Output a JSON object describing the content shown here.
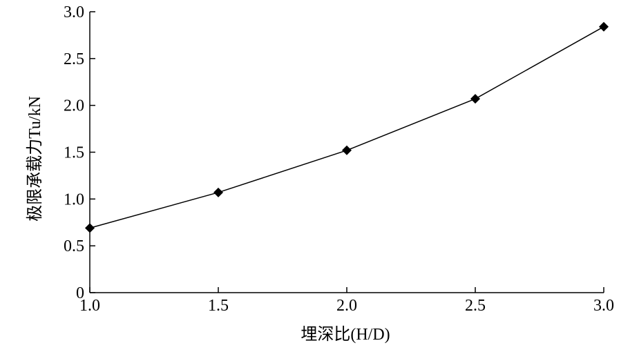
{
  "chart_data": {
    "type": "line",
    "x_label": "埋深比(H/D)",
    "y_label": "极限承载力Tu/kN",
    "x": [
      1.0,
      1.5,
      2.0,
      2.5,
      3.0
    ],
    "series": [
      {
        "name": "Tu",
        "color": "#000000",
        "values": [
          0.69,
          1.07,
          1.52,
          2.07,
          2.84
        ]
      }
    ],
    "xlim": [
      1.0,
      3.0
    ],
    "xticks": [
      {
        "value": 1,
        "label": "1.0"
      },
      1.5,
      {
        "value": 2,
        "label": "2.0"
      },
      2.5,
      {
        "value": 3,
        "label": "3.0"
      }
    ],
    "ylim": [
      0,
      3.0
    ],
    "yticks": [
      0,
      0.5,
      {
        "value": 1,
        "label": "1.0"
      },
      1.5,
      {
        "value": 2,
        "label": "2.0"
      },
      2.5,
      {
        "value": 3,
        "label": "3.0"
      }
    ],
    "grid": false
  }
}
